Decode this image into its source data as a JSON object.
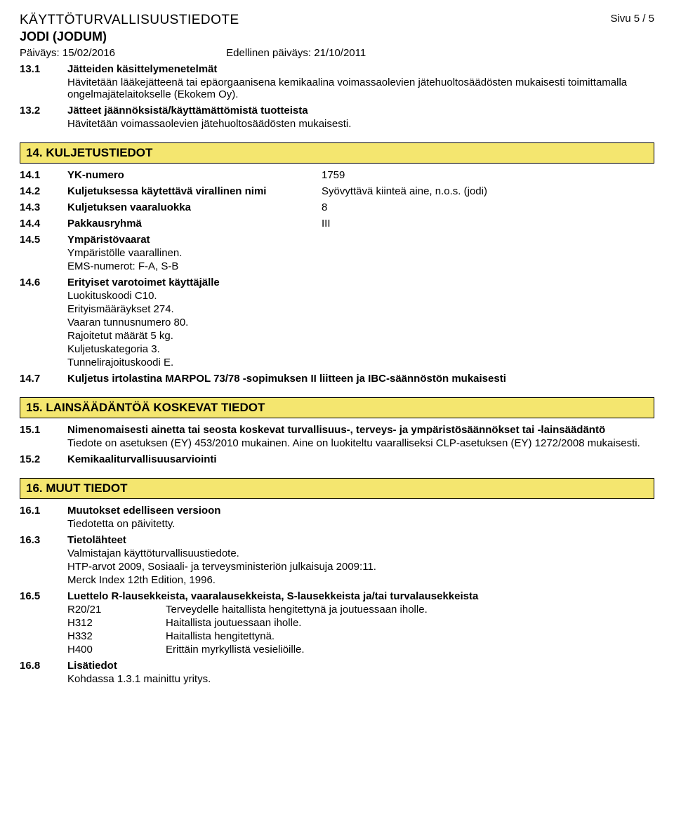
{
  "header": {
    "doc_title": "KÄYTTÖTURVALLISUUSTIEDOTE",
    "page_num": "Sivu  5 / 5",
    "doc_subtitle": "JODI (JODUM)",
    "date_label": "Päiväys: 15/02/2016",
    "prev_date_label": "Edellinen päiväys: 21/10/2011"
  },
  "items13": [
    {
      "num": "13.1",
      "title": "Jätteiden käsittelymenetelmät",
      "body": "Hävitetään lääkejätteenä tai epäorgaanisena kemikaalina voimassaolevien jätehuoltosäädösten mukaisesti toimittamalla ongelmajätelaitokselle (Ekokem Oy)."
    },
    {
      "num": "13.2",
      "title": "Jätteet jäännöksistä/käyttämättömistä tuotteista",
      "body": "Hävitetään voimassaolevien jätehuoltosäädösten mukaisesti."
    }
  ],
  "section14": {
    "heading": "14. KULJETUSTIEDOT"
  },
  "items14rows": [
    {
      "num": "14.1",
      "label": "YK-numero",
      "val": "1759"
    },
    {
      "num": "14.2",
      "label": "Kuljetuksessa käytettävä virallinen nimi",
      "val": "Syövyttävä kiinteä aine, n.o.s. (jodi)"
    },
    {
      "num": "14.3",
      "label": "Kuljetuksen vaaraluokka",
      "val": "8"
    },
    {
      "num": "14.4",
      "label": "Pakkausryhmä",
      "val": "III"
    }
  ],
  "items14sub": [
    {
      "num": "14.5",
      "title": "Ympäristövaarat",
      "body": "Ympäristölle vaarallinen.\nEMS-numerot: F-A, S-B"
    },
    {
      "num": "14.6",
      "title": "Erityiset varotoimet käyttäjälle",
      "body": "Luokituskoodi C10.\nErityismääräykset 274.\nVaaran tunnusnumero 80.\nRajoitetut määrät 5 kg.\nKuljetuskategoria 3.\nTunnelirajoituskoodi E."
    },
    {
      "num": "14.7",
      "title": "Kuljetus irtolastina MARPOL 73/78 -sopimuksen II liitteen ja IBC-säännöstön mukaisesti",
      "body": ""
    }
  ],
  "section15": {
    "heading": "15. LAINSÄÄDÄNTÖÄ KOSKEVAT TIEDOT"
  },
  "items15": [
    {
      "num": "15.1",
      "title": "Nimenomaisesti ainetta tai seosta koskevat turvallisuus-, terveys- ja ympäristösäännökset tai -lainsäädäntö",
      "body": "Tiedote on asetuksen (EY) 453/2010 mukainen. Aine on luokiteltu vaaralliseksi CLP-asetuksen (EY) 1272/2008 mukaisesti."
    },
    {
      "num": "15.2",
      "title": "Kemikaaliturvallisuusarviointi",
      "body": ""
    }
  ],
  "section16": {
    "heading": "16. MUUT TIEDOT"
  },
  "items16a": [
    {
      "num": "16.1",
      "title": "Muutokset edelliseen versioon",
      "body": "Tiedotetta on päivitetty."
    },
    {
      "num": "16.3",
      "title": "Tietolähteet",
      "body": "Valmistajan käyttöturvallisuustiedote.\nHTP-arvot 2009, Sosiaali- ja terveysministeriön julkaisuja 2009:11.\nMerck Index 12th Edition, 1996."
    }
  ],
  "item165": {
    "num": "16.5",
    "title": "Luettelo R-lausekkeista, vaaralausekkeista, S-lausekkeista ja/tai turvalausekkeista"
  },
  "hazards": [
    {
      "code": "R20/21",
      "desc": "Terveydelle haitallista hengitettynä ja joutuessaan iholle."
    },
    {
      "code": "H312",
      "desc": "Haitallista joutuessaan iholle."
    },
    {
      "code": "H332",
      "desc": "Haitallista hengitettynä."
    },
    {
      "code": "H400",
      "desc": "Erittäin myrkyllistä vesieliöille."
    }
  ],
  "item168": {
    "num": "16.8",
    "title": "Lisätiedot",
    "body": "Kohdassa 1.3.1 mainittu yritys."
  }
}
